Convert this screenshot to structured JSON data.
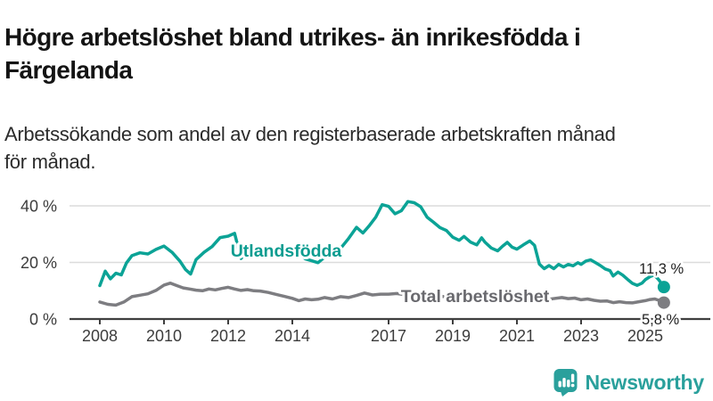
{
  "header": {
    "title": "Högre arbetslöshet bland utrikes- än inrikesfödda i\nFärgelanda",
    "subtitle": "Arbetssökande som andel av den registerbaserade arbetskraften månad\nför månad."
  },
  "chart_data": {
    "type": "line",
    "title": "Högre arbetslöshet bland utrikes- än inrikesfödda i Färgelanda",
    "subtitle": "Arbetssökande som andel av den registerbaserade arbetskraften månad för månad.",
    "xlabel": "",
    "ylabel": "",
    "xlim": [
      2007.8,
      2026.2
    ],
    "ylim": [
      0,
      44
    ],
    "grid": "horizontal",
    "legend_position": "inline-labels",
    "x_axis": {
      "ticks": [
        2008,
        2010,
        2012,
        2014,
        2017,
        2019,
        2021,
        2023,
        2025
      ],
      "tick_labels": [
        "2008",
        "2010",
        "2012",
        "2014",
        "2017",
        "2019",
        "2021",
        "2023",
        "2025"
      ]
    },
    "y_axis": {
      "ticks": [
        0,
        20,
        40
      ],
      "tick_labels": [
        "0 %",
        "20 %",
        "40 %"
      ]
    },
    "axis_color": "#3f3f3f",
    "gridline_color": "#dcdcdc",
    "tick_label_color": "#3c3c3c",
    "value_label_color": "#1f1f1f",
    "series": [
      {
        "name": "Utlandsfödda",
        "color": "#0ba396",
        "label_color": "#0b9c90",
        "end_label": "11,3 %",
        "end_value": 11.3,
        "points": [
          [
            2008.0,
            11.8
          ],
          [
            2008.17,
            16.9
          ],
          [
            2008.33,
            14.2
          ],
          [
            2008.5,
            16.2
          ],
          [
            2008.67,
            15.6
          ],
          [
            2008.83,
            19.8
          ],
          [
            2009.0,
            22.4
          ],
          [
            2009.25,
            23.4
          ],
          [
            2009.5,
            23.0
          ],
          [
            2009.75,
            24.6
          ],
          [
            2010.0,
            25.8
          ],
          [
            2010.25,
            23.6
          ],
          [
            2010.5,
            20.4
          ],
          [
            2010.67,
            17.5
          ],
          [
            2010.83,
            15.9
          ],
          [
            2011.0,
            21.0
          ],
          [
            2011.25,
            23.6
          ],
          [
            2011.5,
            25.6
          ],
          [
            2011.75,
            28.8
          ],
          [
            2012.0,
            29.3
          ],
          [
            2012.2,
            30.3
          ],
          [
            2012.4,
            21.4
          ],
          [
            2012.6,
            24.2
          ],
          [
            2012.8,
            23.9
          ],
          [
            2013.0,
            23.4
          ],
          [
            2013.3,
            21.9
          ],
          [
            2013.6,
            23.3
          ],
          [
            2013.8,
            24.6
          ],
          [
            2014.0,
            24.8
          ],
          [
            2014.2,
            23.0
          ],
          [
            2014.4,
            21.3
          ],
          [
            2014.6,
            20.6
          ],
          [
            2014.8,
            19.9
          ],
          [
            2015.0,
            21.8
          ],
          [
            2015.25,
            23.1
          ],
          [
            2015.5,
            24.9
          ],
          [
            2015.75,
            28.4
          ],
          [
            2016.0,
            32.4
          ],
          [
            2016.2,
            30.4
          ],
          [
            2016.4,
            33.0
          ],
          [
            2016.6,
            36.0
          ],
          [
            2016.8,
            40.4
          ],
          [
            2017.0,
            39.8
          ],
          [
            2017.2,
            37.2
          ],
          [
            2017.4,
            38.3
          ],
          [
            2017.6,
            41.5
          ],
          [
            2017.8,
            41.1
          ],
          [
            2018.0,
            39.7
          ],
          [
            2018.2,
            36.0
          ],
          [
            2018.4,
            34.2
          ],
          [
            2018.6,
            32.3
          ],
          [
            2018.8,
            31.3
          ],
          [
            2019.0,
            28.9
          ],
          [
            2019.2,
            27.8
          ],
          [
            2019.35,
            29.2
          ],
          [
            2019.55,
            27.2
          ],
          [
            2019.75,
            26.2
          ],
          [
            2019.9,
            28.7
          ],
          [
            2020.0,
            27.2
          ],
          [
            2020.2,
            25.1
          ],
          [
            2020.4,
            24.1
          ],
          [
            2020.55,
            25.7
          ],
          [
            2020.7,
            27.1
          ],
          [
            2020.85,
            25.4
          ],
          [
            2021.0,
            24.7
          ],
          [
            2021.2,
            26.2
          ],
          [
            2021.4,
            27.6
          ],
          [
            2021.55,
            26.0
          ],
          [
            2021.7,
            19.4
          ],
          [
            2021.85,
            17.8
          ],
          [
            2022.0,
            18.9
          ],
          [
            2022.15,
            17.8
          ],
          [
            2022.3,
            19.3
          ],
          [
            2022.45,
            18.4
          ],
          [
            2022.6,
            19.3
          ],
          [
            2022.75,
            18.8
          ],
          [
            2022.9,
            19.9
          ],
          [
            2023.0,
            19.3
          ],
          [
            2023.15,
            20.5
          ],
          [
            2023.3,
            20.9
          ],
          [
            2023.45,
            19.9
          ],
          [
            2023.6,
            18.9
          ],
          [
            2023.75,
            17.7
          ],
          [
            2023.9,
            17.1
          ],
          [
            2024.0,
            15.2
          ],
          [
            2024.15,
            16.6
          ],
          [
            2024.3,
            15.5
          ],
          [
            2024.45,
            14.0
          ],
          [
            2024.6,
            12.6
          ],
          [
            2024.75,
            11.9
          ],
          [
            2024.9,
            12.7
          ],
          [
            2025.0,
            13.9
          ],
          [
            2025.15,
            15.0
          ],
          [
            2025.28,
            15.6
          ],
          [
            2025.42,
            13.9
          ],
          [
            2025.58,
            11.3
          ]
        ]
      },
      {
        "name": "Total arbetslöshet",
        "color": "#7d7d81",
        "label_color": "#69696e",
        "end_label": "5,8 %",
        "end_value": 5.8,
        "points": [
          [
            2008.0,
            6.0
          ],
          [
            2008.25,
            5.2
          ],
          [
            2008.5,
            4.9
          ],
          [
            2008.75,
            6.0
          ],
          [
            2009.0,
            7.9
          ],
          [
            2009.25,
            8.4
          ],
          [
            2009.5,
            8.9
          ],
          [
            2009.75,
            10.1
          ],
          [
            2010.0,
            12.0
          ],
          [
            2010.2,
            12.7
          ],
          [
            2010.4,
            11.8
          ],
          [
            2010.6,
            11.0
          ],
          [
            2010.8,
            10.6
          ],
          [
            2011.0,
            10.2
          ],
          [
            2011.2,
            10.0
          ],
          [
            2011.4,
            10.6
          ],
          [
            2011.6,
            10.3
          ],
          [
            2011.8,
            10.8
          ],
          [
            2012.0,
            11.2
          ],
          [
            2012.2,
            10.6
          ],
          [
            2012.4,
            10.1
          ],
          [
            2012.6,
            10.4
          ],
          [
            2012.8,
            10.0
          ],
          [
            2013.0,
            9.9
          ],
          [
            2013.25,
            9.4
          ],
          [
            2013.5,
            8.7
          ],
          [
            2013.75,
            8.0
          ],
          [
            2014.0,
            7.3
          ],
          [
            2014.2,
            6.5
          ],
          [
            2014.4,
            7.1
          ],
          [
            2014.6,
            6.8
          ],
          [
            2014.8,
            7.0
          ],
          [
            2015.0,
            7.6
          ],
          [
            2015.25,
            7.1
          ],
          [
            2015.5,
            7.9
          ],
          [
            2015.75,
            7.6
          ],
          [
            2016.0,
            8.3
          ],
          [
            2016.25,
            9.2
          ],
          [
            2016.5,
            8.5
          ],
          [
            2016.75,
            8.8
          ],
          [
            2017.0,
            8.8
          ],
          [
            2017.25,
            9.0
          ],
          [
            2017.5,
            8.6
          ],
          [
            2017.75,
            8.3
          ],
          [
            2018.0,
            8.1
          ],
          [
            2018.25,
            7.8
          ],
          [
            2018.5,
            8.1
          ],
          [
            2018.75,
            7.9
          ],
          [
            2019.0,
            8.2
          ],
          [
            2019.25,
            8.0
          ],
          [
            2019.5,
            7.8
          ],
          [
            2019.75,
            8.1
          ],
          [
            2020.0,
            8.4
          ],
          [
            2020.25,
            9.0
          ],
          [
            2020.5,
            8.8
          ],
          [
            2020.75,
            8.5
          ],
          [
            2021.0,
            8.2
          ],
          [
            2021.25,
            8.0
          ],
          [
            2021.5,
            7.7
          ],
          [
            2021.75,
            7.3
          ],
          [
            2022.0,
            7.0
          ],
          [
            2022.2,
            7.3
          ],
          [
            2022.4,
            7.6
          ],
          [
            2022.6,
            7.2
          ],
          [
            2022.8,
            7.4
          ],
          [
            2023.0,
            6.8
          ],
          [
            2023.2,
            7.1
          ],
          [
            2023.4,
            6.6
          ],
          [
            2023.6,
            6.3
          ],
          [
            2023.8,
            6.4
          ],
          [
            2024.0,
            5.8
          ],
          [
            2024.2,
            6.1
          ],
          [
            2024.4,
            5.8
          ],
          [
            2024.6,
            5.7
          ],
          [
            2024.8,
            6.1
          ],
          [
            2025.0,
            6.5
          ],
          [
            2025.15,
            6.9
          ],
          [
            2025.3,
            7.1
          ],
          [
            2025.45,
            6.5
          ],
          [
            2025.58,
            5.8
          ]
        ]
      }
    ]
  },
  "footer": {
    "brand": "Newsworthy",
    "brand_color": "#2aa09c"
  }
}
